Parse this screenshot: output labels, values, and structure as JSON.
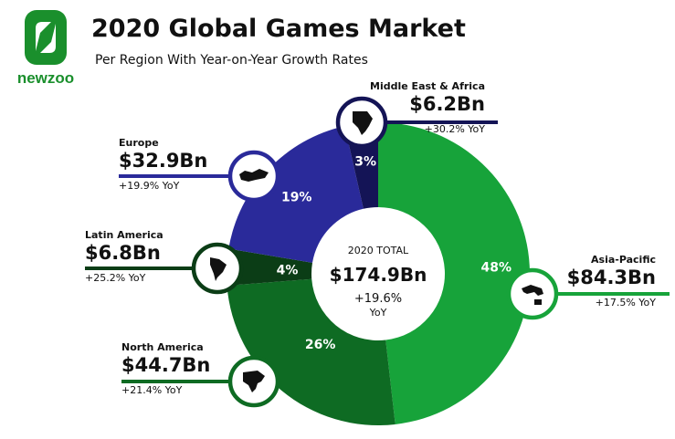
{
  "brand": {
    "logo_text": "newzoo",
    "colors": {
      "green": "#1a8f2c",
      "dark_green": "#0d5218"
    }
  },
  "header": {
    "title": "2020 Global Games Market",
    "subtitle": "Per Region With Year-on-Year Growth Rates"
  },
  "center": {
    "label": "2020 TOTAL",
    "value": "$174.9Bn",
    "growth": "+19.6%",
    "growth_unit": "YoY"
  },
  "chart_data": {
    "type": "pie",
    "style": "donut",
    "title": "2020 Global Games Market",
    "subtitle": "Per Region With Year-on-Year Growth Rates",
    "total": 174.9,
    "total_label": "$174.9Bn",
    "total_growth": "+19.6% YoY",
    "slices": [
      {
        "region": "Asia-Pacific",
        "revenue": 84.3,
        "revenue_label": "$84.3Bn",
        "yoy": "+17.5% YoY",
        "share": 48,
        "share_label": "48%",
        "color": "#17a33a",
        "icon": "asia-pacific-map-icon"
      },
      {
        "region": "North America",
        "revenue": 44.7,
        "revenue_label": "$44.7Bn",
        "yoy": "+21.4% YoY",
        "share": 26,
        "share_label": "26%",
        "color": "#0e6b23",
        "icon": "north-america-map-icon"
      },
      {
        "region": "Latin America",
        "revenue": 6.8,
        "revenue_label": "$6.8Bn",
        "yoy": "+25.2% YoY",
        "share": 4,
        "share_label": "4%",
        "color": "#0b3d16",
        "icon": "latin-america-map-icon"
      },
      {
        "region": "Europe",
        "revenue": 32.9,
        "revenue_label": "$32.9Bn",
        "yoy": "+19.9% YoY",
        "share": 19,
        "share_label": "19%",
        "color": "#2a2a9a",
        "icon": "europe-map-icon"
      },
      {
        "region": "Middle East & Africa",
        "revenue": 6.2,
        "revenue_label": "$6.2Bn",
        "yoy": "+30.2% YoY",
        "share": 3,
        "share_label": "3%",
        "color": "#141456",
        "icon": "middle-east-africa-map-icon"
      }
    ]
  }
}
